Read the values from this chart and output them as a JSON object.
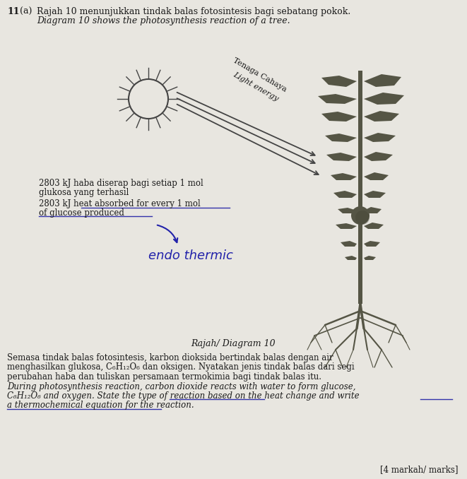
{
  "bg_color": "#e8e6e0",
  "title_number": "11",
  "title_letter": "(a)",
  "title_malay": "Rajah 10 menunjukkan tindak balas fotosintesis bagi sebatang pokok.",
  "title_english": "Diagram 10 shows the photosynthesis reaction of a tree.",
  "diagram_label": "Rajah/ Diagram 10",
  "light_label_malay": "Tenaga Cahaya",
  "light_label_english": "Light energy",
  "text_malay_line1": "2803 kJ haba diserap bagi setiap 1 mol",
  "text_malay_line2": "glukosa yang terhasil",
  "text_english_line1": "2803 kJ heat absorbed for every 1 mol",
  "text_english_line2": "of glucose produced",
  "handwritten": "endo thermic",
  "body_para1_line1": "Semasa tindak balas fotosintesis, karbon dioksida bertindak balas dengan air",
  "body_para1_line2": "menghasilkan glukosa, C₆H₁₂O₆ dan oksigen. Nyatakan jenis tindak balas dari segi",
  "body_para1_line3": "perubahan haba dan tuliskan persamaan termokimia bagi tindak balas itu.",
  "body_para2_line1": "During photosynthesis reaction, carbon dioxide reacts with water to form glucose,",
  "body_para2_line2": "C₆H₁₂O₆ and oxygen. State the type of reaction based on the heat change and write",
  "body_para2_line3": "a thermochemical equation for the reaction.",
  "marks_label": "[4 markah/ marks]",
  "text_color": "#1a1a1a",
  "underline_color": "#3333aa",
  "handwritten_color": "#2222aa",
  "tree_color": "#555545",
  "sun_color": "#444444"
}
